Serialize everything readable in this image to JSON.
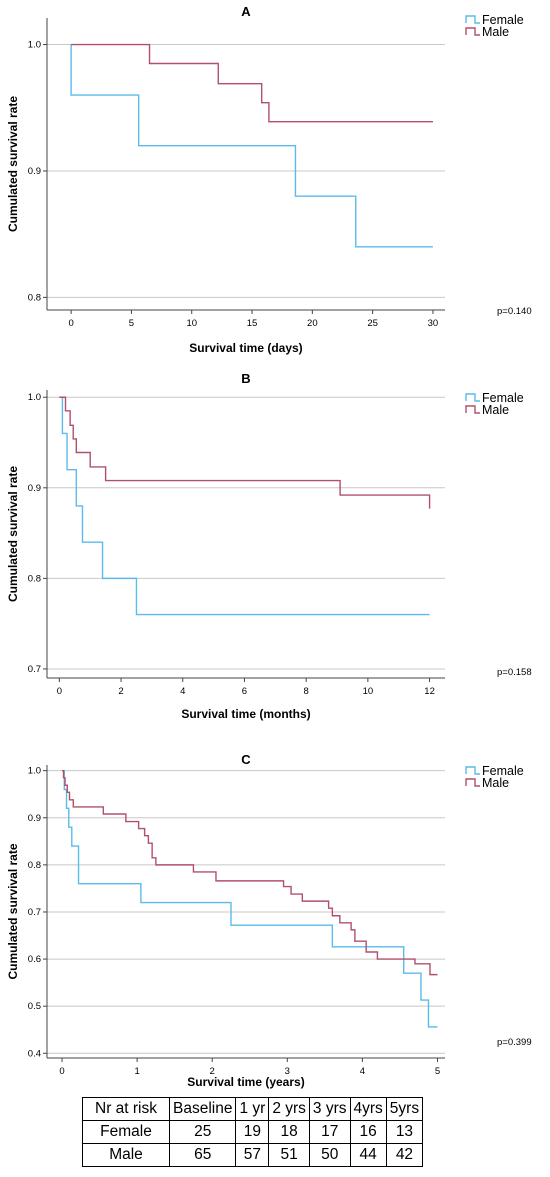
{
  "colors": {
    "female": "#5bbbea",
    "male": "#b2506c",
    "grid": "#c8c8c8",
    "axis": "#444444"
  },
  "chart_data": [
    {
      "type": "line",
      "step": true,
      "panel": "A",
      "title": "A",
      "xlabel": "Survival time (days)",
      "ylabel": "Cumulated survival rate",
      "xlim": [
        -2,
        31
      ],
      "ylim": [
        0.79,
        1.021
      ],
      "xticks": [
        0,
        5,
        10,
        15,
        20,
        25,
        30
      ],
      "yticks": [
        0.8,
        0.9,
        1.0
      ],
      "ytick_labels": [
        "0.8",
        "0.9",
        "1.0"
      ],
      "grid": true,
      "legend": "top-right",
      "pvalue": "p=0.140",
      "series": [
        {
          "name": "Female",
          "color": "#5bbbea",
          "x": [
            0,
            0,
            5.6,
            18.6,
            23.6,
            30
          ],
          "y": [
            1.0,
            0.96,
            0.92,
            0.88,
            0.84,
            0.84
          ]
        },
        {
          "name": "Male",
          "color": "#b2506c",
          "x": [
            0,
            6.5,
            12.2,
            15.8,
            16.4,
            30
          ],
          "y": [
            1.0,
            0.985,
            0.969,
            0.954,
            0.939,
            0.939
          ]
        }
      ]
    },
    {
      "type": "line",
      "step": true,
      "panel": "B",
      "title": "B",
      "xlabel": "Survival time (months)",
      "ylabel": "Cumulated survival rate",
      "xlim": [
        -0.4,
        12.5
      ],
      "ylim": [
        0.69,
        1.008
      ],
      "xticks": [
        0,
        2,
        4,
        6,
        8,
        10,
        12
      ],
      "yticks": [
        0.7,
        0.8,
        0.9,
        1.0
      ],
      "ytick_labels": [
        "0.7",
        "0.8",
        "0.9",
        "1.0"
      ],
      "grid": true,
      "legend": "top-right",
      "pvalue": "p=0.158",
      "series": [
        {
          "name": "Female",
          "color": "#5bbbea",
          "x": [
            0,
            0.1,
            0.25,
            0.55,
            0.75,
            1.4,
            2.5,
            12
          ],
          "y": [
            1.0,
            0.96,
            0.92,
            0.88,
            0.84,
            0.8,
            0.76,
            0.76
          ]
        },
        {
          "name": "Male",
          "color": "#b2506c",
          "x": [
            0,
            0.2,
            0.35,
            0.45,
            0.55,
            0.65,
            1.0,
            1.5,
            1.95,
            9.1,
            11.9,
            12
          ],
          "y": [
            1.0,
            0.985,
            0.969,
            0.954,
            0.939,
            0.939,
            0.923,
            0.908,
            0.908,
            0.892,
            0.892,
            0.877
          ]
        }
      ]
    },
    {
      "type": "line",
      "step": true,
      "panel": "C",
      "title": "C",
      "xlabel": "Survival time (years)",
      "ylabel": "Cumulated survival rate",
      "xlim": [
        -0.2,
        5.1
      ],
      "ylim": [
        0.39,
        1.012
      ],
      "xticks": [
        0,
        1,
        2,
        3,
        4,
        5
      ],
      "yticks": [
        0.4,
        0.5,
        0.6,
        0.7,
        0.8,
        0.9,
        1.0
      ],
      "ytick_labels": [
        "0.4",
        "0.5",
        "0.6",
        "0.7",
        "0.8",
        "0.9",
        "1.0"
      ],
      "grid": true,
      "legend": "top-right",
      "pvalue": "p=0.399",
      "series": [
        {
          "name": "Female",
          "color": "#5bbbea",
          "x": [
            0,
            0.03,
            0.06,
            0.09,
            0.13,
            0.22,
            1.05,
            2.25,
            3.6,
            4.55,
            4.78,
            4.88,
            5.0
          ],
          "y": [
            1.0,
            0.96,
            0.92,
            0.88,
            0.84,
            0.76,
            0.72,
            0.672,
            0.626,
            0.57,
            0.513,
            0.456,
            0.456
          ]
        },
        {
          "name": "Male",
          "color": "#b2506c",
          "x": [
            0,
            0.02,
            0.04,
            0.07,
            0.1,
            0.15,
            0.55,
            0.85,
            1.02,
            1.1,
            1.15,
            1.2,
            1.25,
            1.75,
            2.05,
            2.95,
            3.05,
            3.2,
            3.55,
            3.6,
            3.7,
            3.85,
            3.9,
            4.05,
            4.2,
            4.7,
            4.9,
            5.0
          ],
          "y": [
            1.0,
            0.985,
            0.969,
            0.954,
            0.938,
            0.923,
            0.908,
            0.892,
            0.877,
            0.862,
            0.846,
            0.815,
            0.8,
            0.785,
            0.766,
            0.754,
            0.738,
            0.723,
            0.708,
            0.692,
            0.677,
            0.662,
            0.638,
            0.615,
            0.6,
            0.59,
            0.567,
            0.567
          ]
        }
      ]
    }
  ],
  "risk_table": {
    "header": [
      "Nr at risk",
      "Baseline",
      "1 yr",
      "2 yrs",
      "3 yrs",
      "4yrs",
      "5yrs"
    ],
    "rows": [
      [
        "Female",
        "25",
        "19",
        "18",
        "17",
        "16",
        "13"
      ],
      [
        "Male",
        "65",
        "57",
        "51",
        "50",
        "44",
        "42"
      ]
    ]
  }
}
